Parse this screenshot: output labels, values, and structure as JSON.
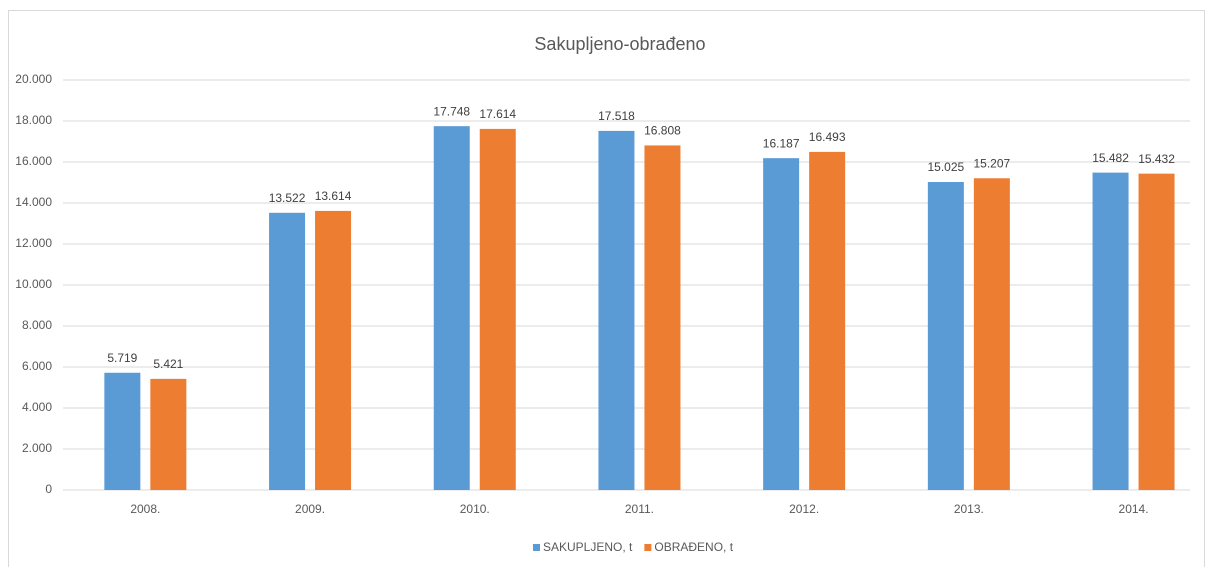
{
  "chart_data": {
    "type": "bar",
    "title": "Sakupljeno-obrađeno",
    "categories": [
      "2008.",
      "2009.",
      "2010.",
      "2011.",
      "2012.",
      "2013.",
      "2014."
    ],
    "series": [
      {
        "name": "SAKUPLJENO, t",
        "color": "#5b9bd5",
        "values": [
          5719,
          13522,
          17748,
          17518,
          16187,
          15025,
          15482
        ],
        "value_labels": [
          "5.719",
          "13.522",
          "17.748",
          "17.518",
          "16.187",
          "15.025",
          "15.482"
        ]
      },
      {
        "name": "OBRAĐENO, t",
        "color": "#ed7d31",
        "values": [
          5421,
          13614,
          17614,
          16808,
          16493,
          15207,
          15432
        ],
        "value_labels": [
          "5.421",
          "13.614",
          "17.614",
          "16.808",
          "16.493",
          "15.207",
          "15.432"
        ]
      }
    ],
    "ylim": [
      0,
      20000
    ],
    "yticks": [
      0,
      {
        "value": 2000,
        "label": "2.000"
      },
      {
        "value": 4000,
        "label": "4.000"
      },
      {
        "value": 6000,
        "label": "6.000"
      },
      {
        "value": 8000,
        "label": "8.000"
      },
      {
        "value": 10000,
        "label": "10.000"
      },
      {
        "value": 12000,
        "label": "12.000"
      },
      {
        "value": 14000,
        "label": "14.000"
      },
      {
        "value": 16000,
        "label": "16.000"
      },
      {
        "value": 18000,
        "label": "18.000"
      },
      {
        "value": 20000,
        "label": "20.000"
      }
    ],
    "grid": true,
    "legend": "bottom"
  }
}
